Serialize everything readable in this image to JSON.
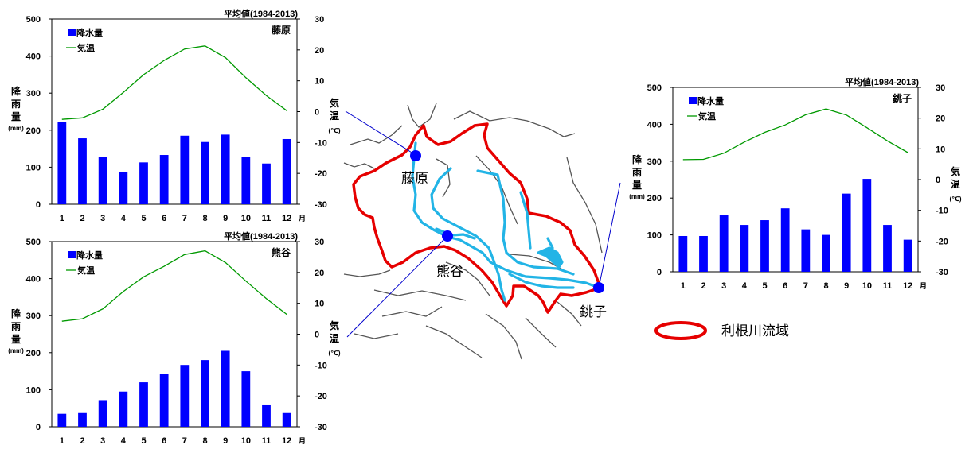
{
  "figure": {
    "legend_basin_label": "利根川流域",
    "map_labels": {
      "fujiwara": "藤原",
      "kumagaya": "熊谷",
      "choshi": "銚子"
    },
    "colors": {
      "bar": "#0000ff",
      "temperature_line": "#009900",
      "basin_outline": "#e60000",
      "river": "#22b4e6",
      "boundary": "#555555",
      "station_point": "#0000ff"
    }
  },
  "chart_data": [
    {
      "type": "bar",
      "station": "藤原",
      "period_label": "平均値(1984-2013)",
      "categories": [
        "1",
        "2",
        "3",
        "4",
        "5",
        "6",
        "7",
        "8",
        "9",
        "10",
        "11",
        "12"
      ],
      "month_unit": "月",
      "legend": [
        "降水量",
        "気温"
      ],
      "y_left": {
        "label": [
          "降",
          "雨",
          "量"
        ],
        "unit": "(mm)",
        "ylim": [
          0,
          500
        ],
        "ticks": [
          "0",
          "100",
          "200",
          "300",
          "400",
          "500"
        ]
      },
      "y_right": {
        "label": [
          "気",
          "温"
        ],
        "unit": "(℃)",
        "ylim": [
          -30,
          30
        ],
        "ticks": [
          "-30",
          "-20",
          "-10",
          "0",
          "10",
          "20",
          "30"
        ]
      },
      "series": [
        {
          "name": "降水量",
          "type": "bar",
          "axis": "left",
          "values": [
            222,
            178,
            128,
            88,
            113,
            133,
            185,
            168,
            188,
            127,
            110,
            176
          ]
        },
        {
          "name": "気温",
          "type": "line",
          "axis": "right",
          "values": [
            -2.5,
            -2,
            0.8,
            6.2,
            12,
            16.6,
            20.3,
            21.3,
            17.5,
            11,
            5.2,
            0.3
          ]
        }
      ]
    },
    {
      "type": "bar",
      "station": "熊谷",
      "period_label": "平均値(1984-2013)",
      "categories": [
        "1",
        "2",
        "3",
        "4",
        "5",
        "6",
        "7",
        "8",
        "9",
        "10",
        "11",
        "12"
      ],
      "month_unit": "月",
      "legend": [
        "降水量",
        "気温"
      ],
      "y_left": {
        "label": [
          "降",
          "雨",
          "量"
        ],
        "unit": "(mm)",
        "ylim": [
          0,
          500
        ],
        "ticks": [
          "0",
          "100",
          "200",
          "300",
          "400",
          "500"
        ]
      },
      "y_right": {
        "label": [
          "気",
          "温"
        ],
        "unit": "(℃)",
        "ylim": [
          -30,
          30
        ],
        "ticks": [
          "-30",
          "-20",
          "-10",
          "0",
          "10",
          "20",
          "30"
        ]
      },
      "series": [
        {
          "name": "降水量",
          "type": "bar",
          "axis": "left",
          "values": [
            35,
            37,
            72,
            95,
            120,
            143,
            167,
            180,
            205,
            150,
            58,
            37
          ]
        },
        {
          "name": "気温",
          "type": "line",
          "axis": "right",
          "values": [
            4.2,
            5,
            8.2,
            13.8,
            18.6,
            22,
            25.8,
            27,
            23.2,
            17.2,
            11.5,
            6.4
          ]
        }
      ]
    },
    {
      "type": "bar",
      "station": "銚子",
      "period_label": "平均値(1984-2013)",
      "categories": [
        "1",
        "2",
        "3",
        "4",
        "5",
        "6",
        "7",
        "8",
        "9",
        "10",
        "11",
        "12"
      ],
      "month_unit": "月",
      "legend": [
        "降水量",
        "気温"
      ],
      "y_left": {
        "label": [
          "降",
          "雨",
          "量"
        ],
        "unit": "(mm)",
        "ylim": [
          0,
          500
        ],
        "ticks": [
          "0",
          "100",
          "200",
          "300",
          "400",
          "500"
        ]
      },
      "y_right": {
        "label": [
          "気",
          "温"
        ],
        "unit": "(℃)",
        "ylim": [
          -30,
          30
        ],
        "ticks": [
          "-30",
          "-20",
          "-10",
          "0",
          "10",
          "20",
          "30"
        ]
      },
      "series": [
        {
          "name": "降水量",
          "type": "bar",
          "axis": "left",
          "values": [
            97,
            97,
            153,
            127,
            140,
            172,
            115,
            100,
            212,
            252,
            127,
            87
          ]
        },
        {
          "name": "気温",
          "type": "line",
          "axis": "right",
          "values": [
            6.5,
            6.6,
            8.6,
            12.2,
            15.4,
            17.8,
            21.1,
            23,
            21,
            16.9,
            12.6,
            8.8
          ]
        }
      ]
    }
  ]
}
